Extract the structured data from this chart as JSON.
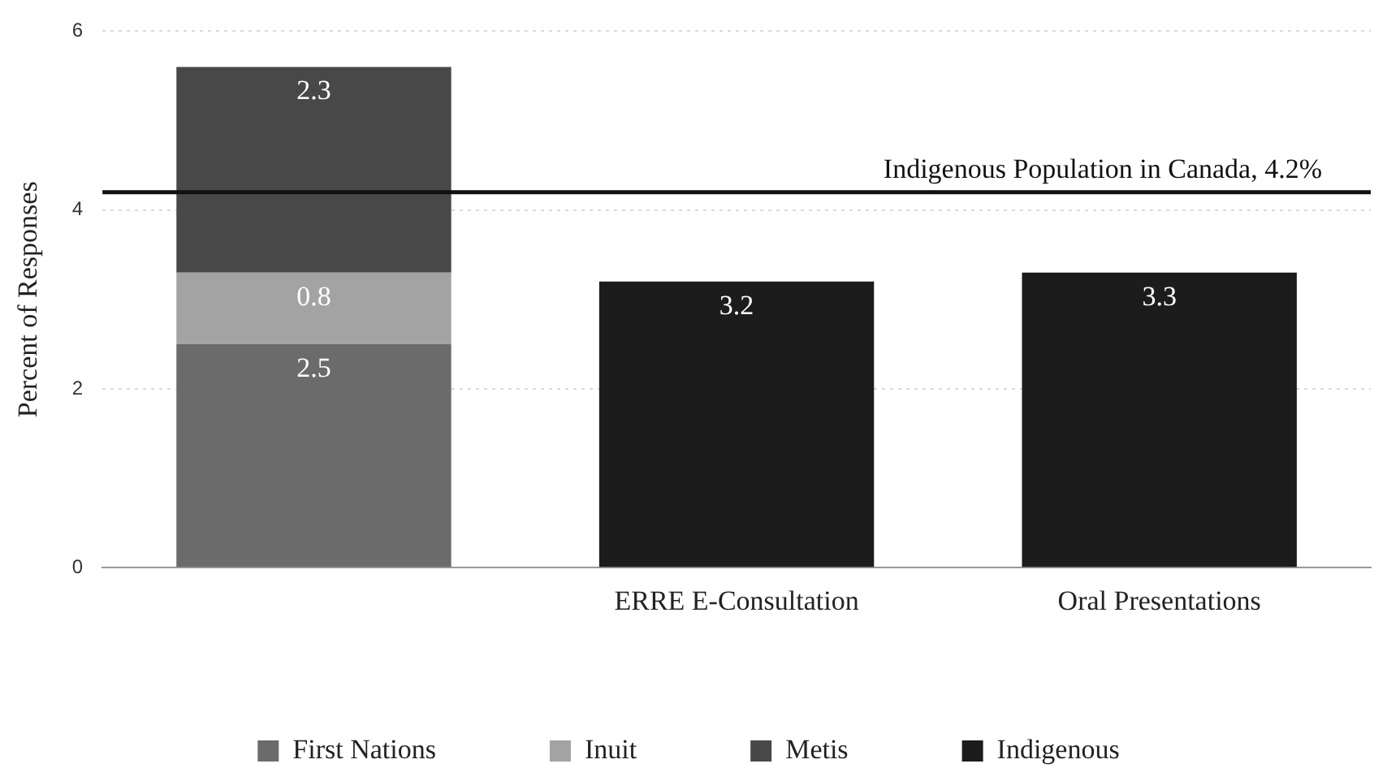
{
  "chart_data": {
    "type": "bar",
    "ylabel": "Percent of Responses",
    "categories": [
      null,
      "ERRE E-Consultation",
      "Oral Presentations"
    ],
    "series": [
      {
        "name": "First Nations",
        "color": "#6b6b6b",
        "values": [
          2.5,
          null,
          null
        ]
      },
      {
        "name": "Inuit",
        "color": "#a3a3a3",
        "values": [
          0.8,
          null,
          null
        ]
      },
      {
        "name": "Metis",
        "color": "#484848",
        "values": [
          2.3,
          null,
          null
        ]
      },
      {
        "name": "Indigenous",
        "color": "#1c1c1c",
        "values": [
          null,
          3.2,
          3.3
        ]
      }
    ],
    "stacked": true,
    "ylim": [
      0,
      6
    ],
    "yticks": [
      0,
      2,
      4,
      6
    ],
    "grid": "y",
    "legend": "bottom",
    "data_labels": true,
    "ref_lines": [
      {
        "axis": "y",
        "value": 4.2,
        "label": "Indigenous Population in Canada, 4.2%",
        "color": "#111111"
      }
    ]
  }
}
